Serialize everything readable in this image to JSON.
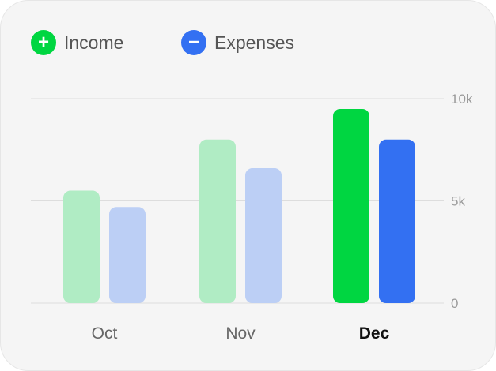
{
  "legend": {
    "income": {
      "label": "Income",
      "icon": "plus-icon",
      "symbol": "+"
    },
    "expenses": {
      "label": "Expenses",
      "icon": "minus-icon",
      "symbol": "−"
    }
  },
  "colors": {
    "income": "#00d641",
    "income_faded": "#b0ecc4",
    "expenses": "#3370f2",
    "expenses_faded": "#bccff5",
    "grid": "#dddddd",
    "background": "#f5f5f5"
  },
  "chart_data": {
    "type": "bar",
    "categories": [
      "Oct",
      "Nov",
      "Dec"
    ],
    "selected_category": "Dec",
    "series": [
      {
        "name": "Income",
        "values": [
          5500,
          8000,
          9500
        ]
      },
      {
        "name": "Expenses",
        "values": [
          4700,
          6600,
          8000
        ]
      }
    ],
    "yticks": [
      {
        "value": 0,
        "label": "0"
      },
      {
        "value": 5000,
        "label": "5k"
      },
      {
        "value": 10000,
        "label": "10k"
      }
    ],
    "ylim": [
      0,
      10000
    ],
    "grid": true,
    "legend_position": "top-left",
    "title": "",
    "xlabel": "",
    "ylabel": ""
  }
}
